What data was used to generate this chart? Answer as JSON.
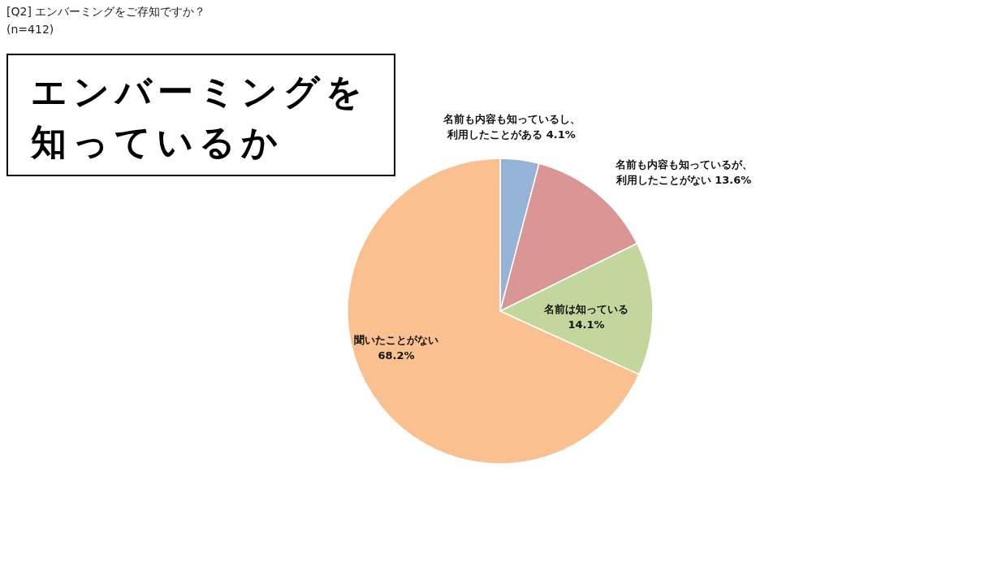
{
  "chart_data": {
    "type": "pie",
    "title": "[Q2] エンバーミングをご存知ですか？",
    "subtitle": "(n=412)",
    "categories": [
      "名前も内容も知っているし、利用したことがある",
      "名前も内容も知っているが、利用したことがない",
      "名前は知っている",
      "聞いたことがない"
    ],
    "values": [
      4.1,
      13.6,
      14.1,
      68.2
    ],
    "colors": [
      "#95b3d7",
      "#d99694",
      "#c3d69b",
      "#fac090"
    ],
    "value_labels": [
      "4.1%",
      "13.6%",
      "14.1%",
      "68.2%"
    ],
    "annotations": [
      "エンバーミングを知っているか"
    ]
  }
}
